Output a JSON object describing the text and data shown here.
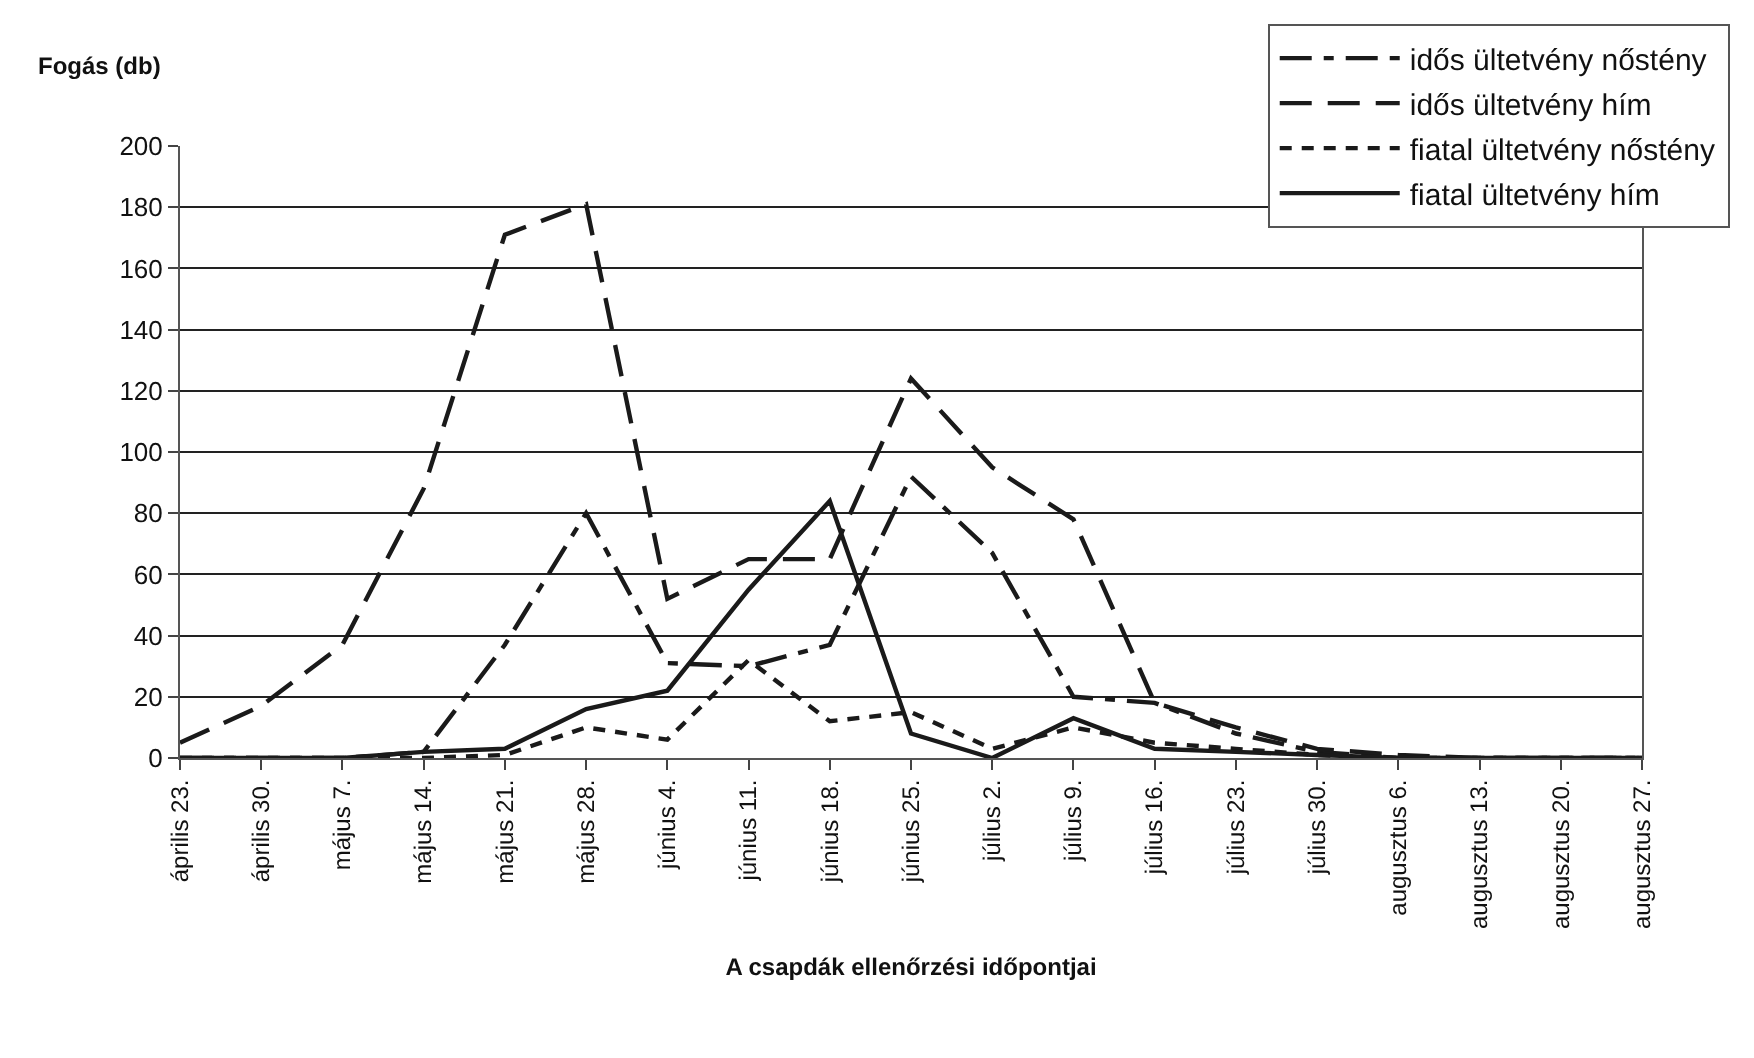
{
  "chart_data": {
    "type": "line",
    "ylabel": "Fogás (db)",
    "xlabel": "A csapdák ellenőrzési időpontjai",
    "categories": [
      "április 23.",
      "április 30.",
      "május 7.",
      "május 14.",
      "május 21.",
      "május 28.",
      "június 4.",
      "június 11.",
      "június 18.",
      "június 25.",
      "július 2.",
      "július 9.",
      "július 16.",
      "július 23.",
      "július 30.",
      "augusztus 6.",
      "augusztus 13.",
      "augusztus 20.",
      "augusztus 27."
    ],
    "series": [
      {
        "name": "idős ültetvény nőstény",
        "color": "#1a1a1a",
        "line_style": "dashdot",
        "values": [
          0,
          0,
          0,
          2,
          37,
          80,
          31,
          30,
          37,
          92,
          67,
          20,
          18,
          8,
          2,
          0,
          0,
          0,
          0
        ]
      },
      {
        "name": "idős ültetvény hím",
        "color": "#1a1a1a",
        "line_style": "longdash",
        "values": [
          5,
          17,
          37,
          88,
          171,
          181,
          52,
          65,
          65,
          124,
          95,
          78,
          18,
          10,
          3,
          1,
          0,
          0,
          0
        ]
      },
      {
        "name": "fiatal ültetvény nőstény",
        "color": "#1a1a1a",
        "line_style": "dashed",
        "values": [
          0,
          0,
          0,
          0,
          1,
          10,
          6,
          32,
          12,
          15,
          3,
          10,
          5,
          3,
          1,
          0,
          0,
          0,
          0
        ]
      },
      {
        "name": "fiatal ültetvény hím",
        "color": "#1a1a1a",
        "line_style": "solid",
        "values": [
          0,
          0,
          0,
          2,
          3,
          16,
          22,
          55,
          84,
          8,
          0,
          13,
          3,
          2,
          1,
          0,
          0,
          0,
          0
        ]
      }
    ],
    "ylim": [
      0,
      200
    ],
    "yticks": [
      0,
      20,
      40,
      60,
      80,
      100,
      120,
      140,
      160,
      180,
      200
    ],
    "grid": "y",
    "legend": "top right",
    "marker": "none"
  }
}
